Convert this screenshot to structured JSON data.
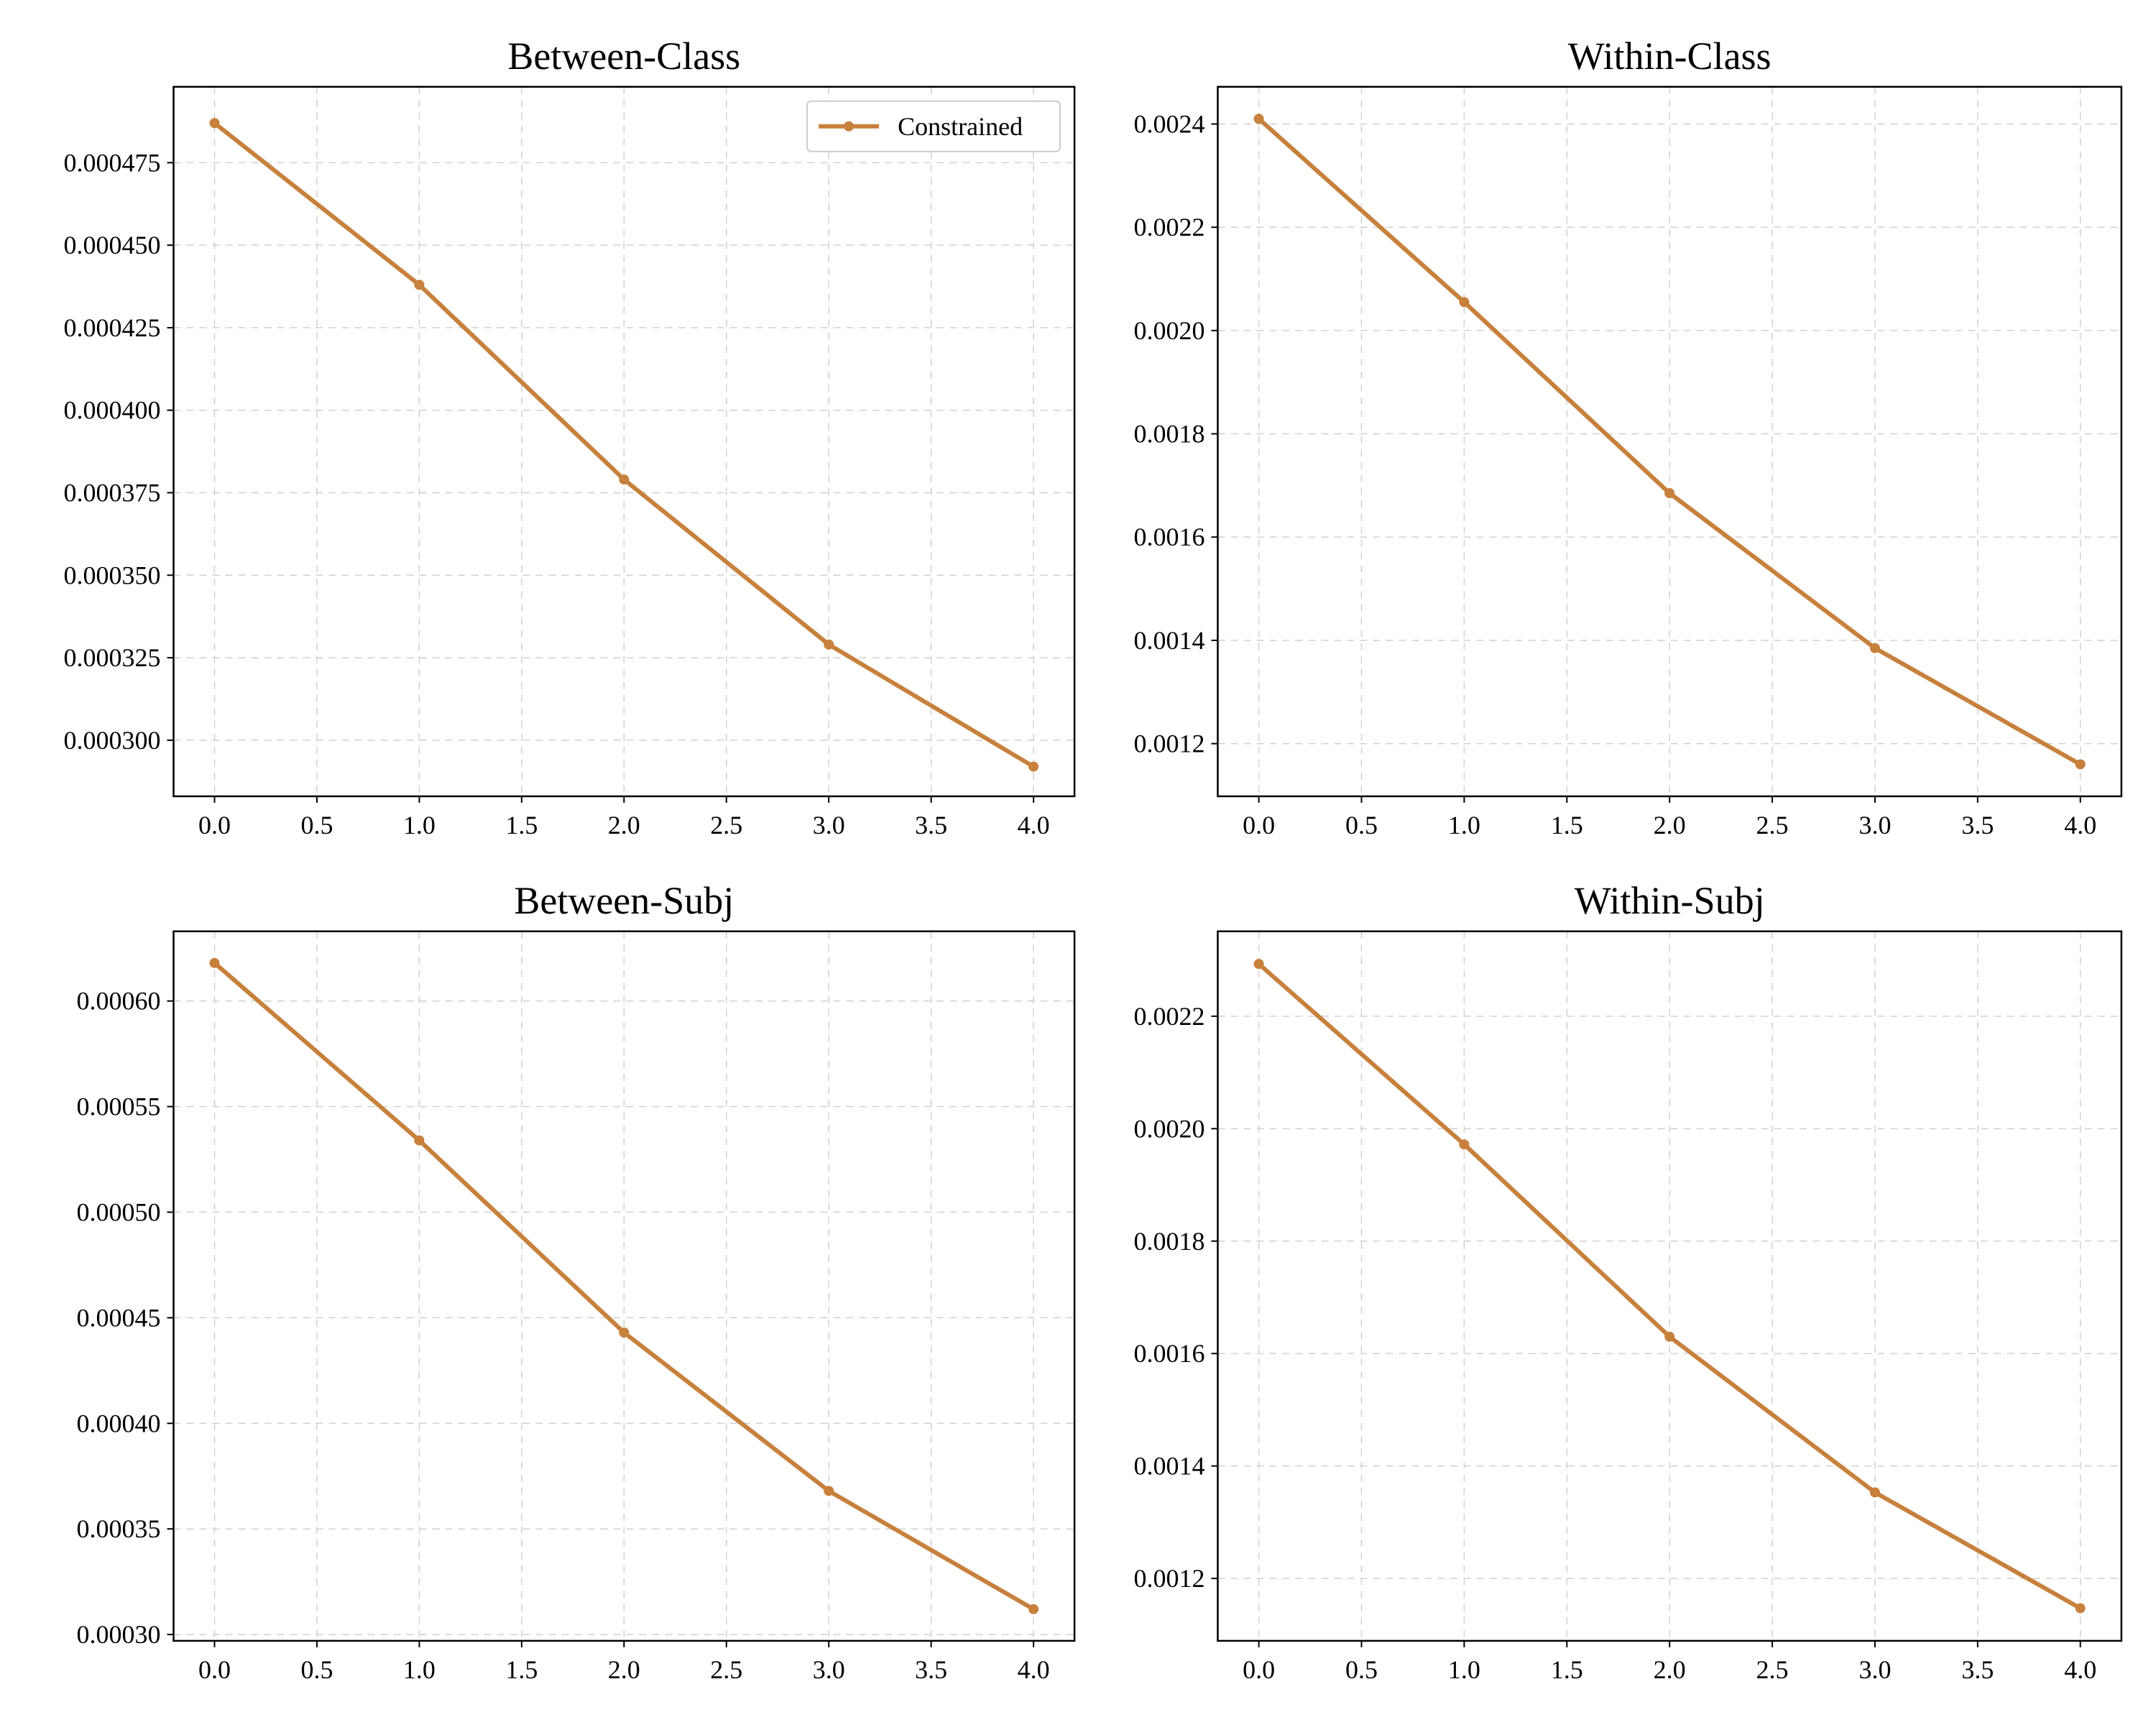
{
  "chart_data": [
    {
      "type": "line",
      "title": "Between-Class",
      "x": [
        0,
        1,
        2,
        3,
        4
      ],
      "series": [
        {
          "name": "Constrained",
          "values": [
            0.000487,
            0.000438,
            0.000379,
            0.000329,
            0.000292
          ]
        }
      ],
      "xlim": [
        -0.2,
        4.2
      ],
      "ylim": [
        0.000283,
        0.000498
      ],
      "xticks": [
        0.0,
        0.5,
        1.0,
        1.5,
        2.0,
        2.5,
        3.0,
        3.5,
        4.0
      ],
      "xtick_labels": [
        "0.0",
        "0.5",
        "1.0",
        "1.5",
        "2.0",
        "2.5",
        "3.0",
        "3.5",
        "4.0"
      ],
      "yticks": [
        0.0003,
        0.000325,
        0.00035,
        0.000375,
        0.0004,
        0.000425,
        0.00045,
        0.000475
      ],
      "ytick_labels": [
        "0.000300",
        "0.000325",
        "0.000350",
        "0.000375",
        "0.000400",
        "0.000425",
        "0.000450",
        "0.000475"
      ],
      "xlabel": "",
      "ylabel": "",
      "grid": true,
      "legend": {
        "position": "top-right",
        "entries": [
          "Constrained"
        ]
      }
    },
    {
      "type": "line",
      "title": "Within-Class",
      "x": [
        0,
        1,
        2,
        3,
        4
      ],
      "series": [
        {
          "name": "Constrained",
          "values": [
            0.00241,
            0.002055,
            0.001685,
            0.001385,
            0.00116
          ]
        }
      ],
      "xlim": [
        -0.2,
        4.2
      ],
      "ylim": [
        0.001098,
        0.002472
      ],
      "xticks": [
        0.0,
        0.5,
        1.0,
        1.5,
        2.0,
        2.5,
        3.0,
        3.5,
        4.0
      ],
      "xtick_labels": [
        "0.0",
        "0.5",
        "1.0",
        "1.5",
        "2.0",
        "2.5",
        "3.0",
        "3.5",
        "4.0"
      ],
      "yticks": [
        0.0012,
        0.0014,
        0.0016,
        0.0018,
        0.002,
        0.0022,
        0.0024
      ],
      "ytick_labels": [
        "0.0012",
        "0.0014",
        "0.0016",
        "0.0018",
        "0.0020",
        "0.0022",
        "0.0024"
      ],
      "xlabel": "",
      "ylabel": "",
      "grid": true
    },
    {
      "type": "line",
      "title": "Between-Subj",
      "x": [
        0,
        1,
        2,
        3,
        4
      ],
      "series": [
        {
          "name": "Constrained",
          "values": [
            0.000618,
            0.000534,
            0.000443,
            0.000368,
            0.000312
          ]
        }
      ],
      "xlim": [
        -0.2,
        4.2
      ],
      "ylim": [
        0.000297,
        0.000633
      ],
      "xticks": [
        0.0,
        0.5,
        1.0,
        1.5,
        2.0,
        2.5,
        3.0,
        3.5,
        4.0
      ],
      "xtick_labels": [
        "0.0",
        "0.5",
        "1.0",
        "1.5",
        "2.0",
        "2.5",
        "3.0",
        "3.5",
        "4.0"
      ],
      "yticks": [
        0.0003,
        0.00035,
        0.0004,
        0.00045,
        0.0005,
        0.00055,
        0.0006
      ],
      "ytick_labels": [
        "0.00030",
        "0.00035",
        "0.00040",
        "0.00045",
        "0.00050",
        "0.00055",
        "0.00060"
      ],
      "xlabel": "",
      "ylabel": "",
      "grid": true
    },
    {
      "type": "line",
      "title": "Within-Subj",
      "x": [
        0,
        1,
        2,
        3,
        4
      ],
      "series": [
        {
          "name": "Constrained",
          "values": [
            0.002293,
            0.001972,
            0.00163,
            0.001353,
            0.001147
          ]
        }
      ],
      "xlim": [
        -0.2,
        4.2
      ],
      "ylim": [
        0.001089,
        0.002351
      ],
      "xticks": [
        0.0,
        0.5,
        1.0,
        1.5,
        2.0,
        2.5,
        3.0,
        3.5,
        4.0
      ],
      "xtick_labels": [
        "0.0",
        "0.5",
        "1.0",
        "1.5",
        "2.0",
        "2.5",
        "3.0",
        "3.5",
        "4.0"
      ],
      "yticks": [
        0.0012,
        0.0014,
        0.0016,
        0.0018,
        0.002,
        0.0022
      ],
      "ytick_labels": [
        "0.0012",
        "0.0014",
        "0.0016",
        "0.0018",
        "0.0020",
        "0.0022"
      ],
      "xlabel": "",
      "ylabel": "",
      "grid": true
    }
  ],
  "colors": {
    "series": "#c8803d",
    "axes": "#000000",
    "grid": "#d0d0d0"
  }
}
